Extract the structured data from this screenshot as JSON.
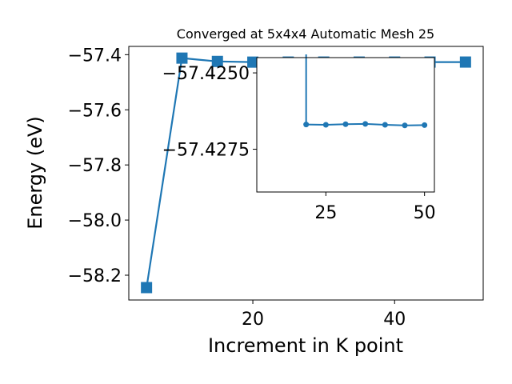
{
  "chart_data": [
    {
      "type": "line",
      "title": "Converged at 5x4x4 Automatic Mesh 25",
      "xlabel": "Increment in K point",
      "ylabel": "Energy (eV)",
      "xlim": [
        2.5,
        52.5
      ],
      "ylim": [
        -58.29,
        -57.37
      ],
      "xticks": [
        20,
        40
      ],
      "yticks": [
        -58.2,
        -58.0,
        -57.8,
        -57.6,
        -57.4
      ],
      "ytick_labels": [
        "−58.2",
        "−58.0",
        "−57.8",
        "−57.6",
        "−57.4"
      ],
      "series": [
        {
          "marker": "square",
          "color": "#1f77b4",
          "x": [
            5,
            10,
            15,
            20,
            25,
            30,
            35,
            40,
            45,
            50
          ],
          "y": [
            -58.245,
            -57.4125,
            -57.4245,
            -57.427,
            -57.4268,
            -57.4268,
            -57.4268,
            -57.4268,
            -57.4268,
            -57.4268
          ]
        }
      ]
    },
    {
      "type": "line",
      "role": "inset",
      "xlim": [
        7.5,
        52.5
      ],
      "ylim": [
        -57.4245,
        -57.4289
      ],
      "xticks": [
        25,
        50
      ],
      "yticks": [
        -57.4275,
        -57.425
      ],
      "ytick_labels": [
        "−57.4275",
        "−57.4250"
      ],
      "series": [
        {
          "marker": "circle",
          "color": "#1f77b4",
          "x": [
            20,
            25,
            30,
            35,
            40,
            45,
            50
          ],
          "y": [
            -57.42669,
            -57.4267,
            -57.42668,
            -57.42667,
            -57.4267,
            -57.42672,
            -57.42671
          ],
          "x_lead_in": 20,
          "y_lead_in": -57.4127
        }
      ]
    }
  ]
}
